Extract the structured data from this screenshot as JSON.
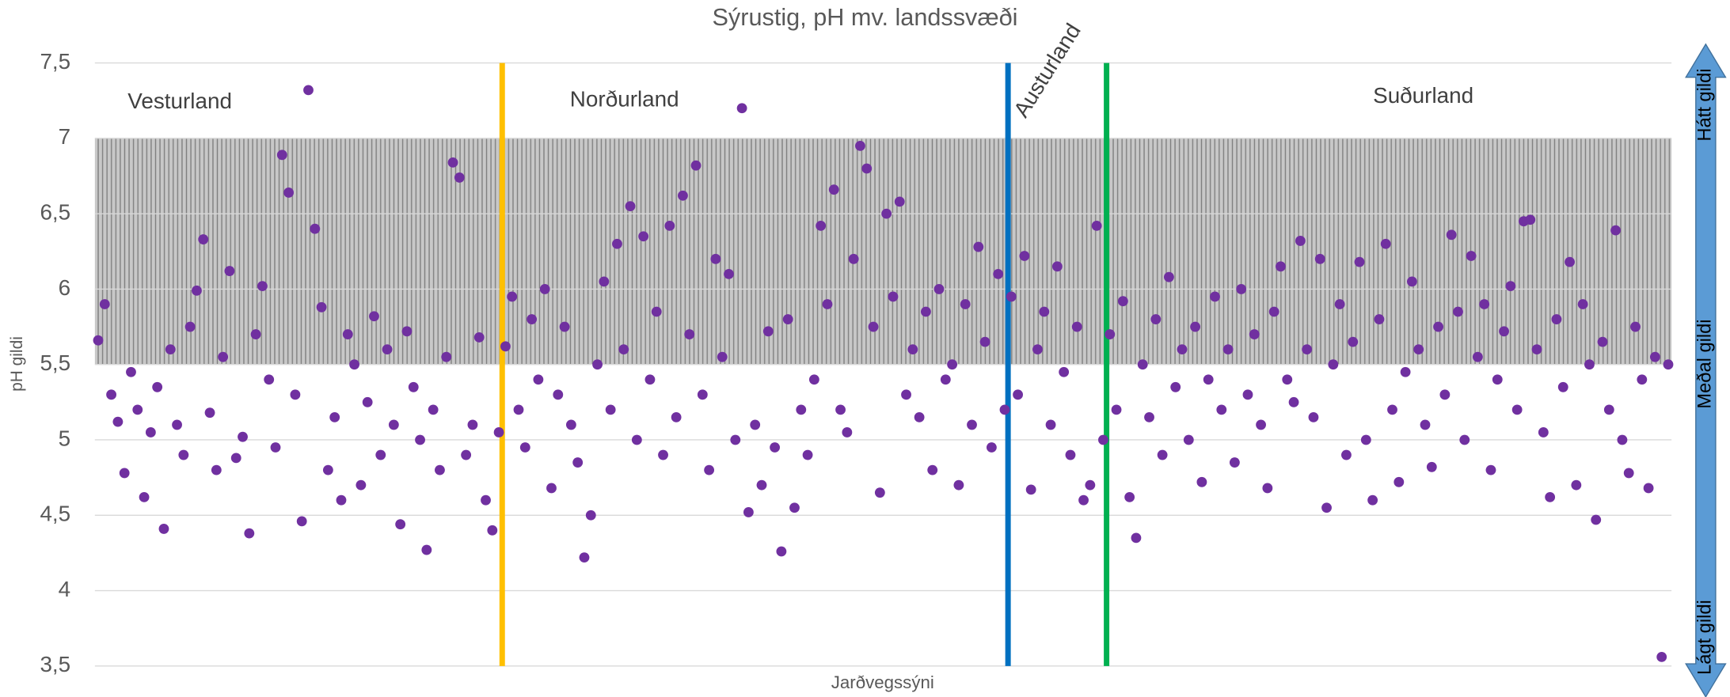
{
  "chart_data": {
    "type": "scatter",
    "title": "Sýrustig, pH mv. landssvæði",
    "x_label": "Jarðvegssýni",
    "y_label": "pH gildi",
    "color": "#7030a0",
    "ylim": [
      3.5,
      7.5
    ],
    "yticks": [
      {
        "value": 3.5,
        "label": "3,5"
      },
      4,
      {
        "value": 4.5,
        "label": "4,5"
      },
      5,
      {
        "value": 5.5,
        "label": "5,5"
      },
      6,
      {
        "value": 6.5,
        "label": "6,5"
      },
      7,
      {
        "value": 7.5,
        "label": "7,5"
      }
    ],
    "grid": true,
    "band": {
      "from": 5.5,
      "to": 7
    },
    "regions": [
      "Vesturland",
      "Norðurland",
      "Austurland",
      "Suðurland"
    ],
    "dividers": [
      {
        "position": 62,
        "color": "#ffc000"
      },
      {
        "position": 139,
        "color": "#0070c0"
      },
      {
        "position": 154,
        "color": "#00b050"
      }
    ],
    "scale_labels": [
      "Hátt gildi",
      "Meðal gildi",
      "Lágt gildi"
    ],
    "values": [
      5.66,
      5.9,
      5.3,
      5.12,
      4.78,
      5.45,
      5.2,
      4.62,
      5.05,
      5.35,
      4.41,
      5.6,
      5.1,
      4.9,
      5.75,
      5.99,
      6.33,
      5.18,
      4.8,
      5.55,
      6.12,
      4.88,
      5.02,
      4.38,
      5.7,
      6.02,
      5.4,
      4.95,
      6.89,
      6.64,
      5.3,
      4.46,
      7.32,
      6.4,
      5.88,
      4.8,
      5.15,
      4.6,
      5.7,
      5.5,
      4.7,
      5.25,
      5.82,
      4.9,
      5.6,
      5.1,
      4.44,
      5.72,
      5.35,
      5.0,
      4.27,
      5.2,
      4.8,
      5.55,
      6.84,
      6.74,
      4.9,
      5.1,
      5.68,
      4.6,
      4.4,
      5.05,
      5.62,
      5.95,
      5.2,
      4.95,
      5.8,
      5.4,
      6.0,
      4.68,
      5.3,
      5.75,
      5.1,
      4.85,
      4.22,
      4.5,
      5.5,
      6.05,
      5.2,
      6.3,
      5.6,
      6.55,
      5.0,
      6.35,
      5.4,
      5.85,
      4.9,
      6.42,
      5.15,
      6.62,
      5.7,
      6.82,
      5.3,
      4.8,
      6.2,
      5.55,
      6.1,
      5.0,
      7.2,
      4.52,
      5.1,
      4.7,
      5.72,
      4.95,
      4.26,
      5.8,
      4.55,
      5.2,
      4.9,
      5.4,
      6.42,
      5.9,
      6.66,
      5.2,
      5.05,
      6.2,
      6.95,
      6.8,
      5.75,
      4.65,
      6.5,
      5.95,
      6.58,
      5.3,
      5.6,
      5.15,
      5.85,
      4.8,
      6.0,
      5.4,
      5.5,
      4.7,
      5.9,
      5.1,
      6.28,
      5.65,
      4.95,
      6.1,
      5.2,
      5.95,
      5.3,
      6.22,
      4.67,
      5.6,
      5.85,
      5.1,
      6.15,
      5.45,
      4.9,
      5.75,
      4.6,
      4.7,
      6.42,
      5.0,
      5.7,
      5.2,
      5.92,
      4.62,
      4.35,
      5.5,
      5.15,
      5.8,
      4.9,
      6.08,
      5.35,
      5.6,
      5.0,
      5.75,
      4.72,
      5.4,
      5.95,
      5.2,
      5.6,
      4.85,
      6.0,
      5.3,
      5.7,
      5.1,
      4.68,
      5.85,
      6.15,
      5.4,
      5.25,
      6.32,
      5.6,
      5.15,
      6.2,
      4.55,
      5.5,
      5.9,
      4.9,
      5.65,
      6.18,
      5.0,
      4.6,
      5.8,
      6.3,
      5.2,
      4.72,
      5.45,
      6.05,
      5.6,
      5.1,
      4.82,
      5.75,
      5.3,
      6.36,
      5.85,
      5.0,
      6.22,
      5.55,
      5.9,
      4.8,
      5.4,
      5.72,
      6.02,
      5.2,
      6.45,
      6.46,
      5.6,
      5.05,
      4.62,
      5.8,
      5.35,
      6.18,
      4.7,
      5.9,
      5.5,
      4.47,
      5.65,
      5.2,
      6.39,
      5.0,
      4.78,
      5.75,
      5.4,
      4.68,
      5.55,
      3.56,
      5.5
    ]
  }
}
